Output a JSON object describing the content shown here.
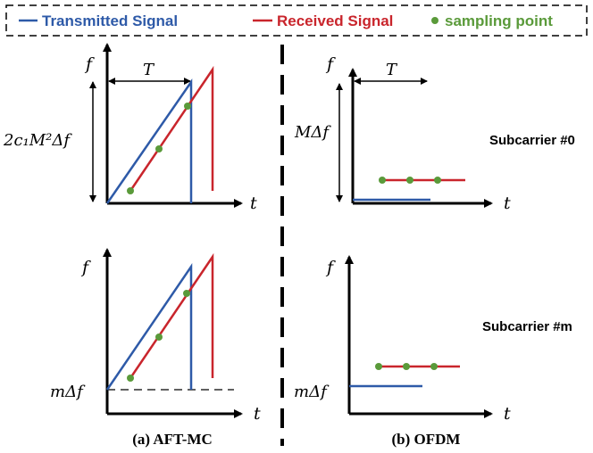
{
  "legend": {
    "transmitted_label": "Transmitted Signal",
    "received_label": "Received Signal",
    "sampling_label": "sampling point"
  },
  "colors": {
    "transmitted": "#2e5aa8",
    "received": "#c9252c",
    "sampling": "#5a9a3a"
  },
  "panel_a": {
    "caption": "(a)  AFT-MC",
    "top": {
      "y_axis": "f",
      "x_axis": "t",
      "period": "T",
      "height_label": "2c₁M²Δf"
    },
    "bottom": {
      "y_axis": "f",
      "x_axis": "t",
      "offset_label": "mΔf"
    }
  },
  "panel_b": {
    "caption": "(b)  OFDM",
    "top": {
      "y_axis": "f",
      "x_axis": "t",
      "period": "T",
      "height_label": "MΔf",
      "subcarrier": "Subcarrier #0"
    },
    "bottom": {
      "y_axis": "f",
      "x_axis": "t",
      "offset_label": "mΔf",
      "subcarrier": "Subcarrier #m"
    }
  }
}
